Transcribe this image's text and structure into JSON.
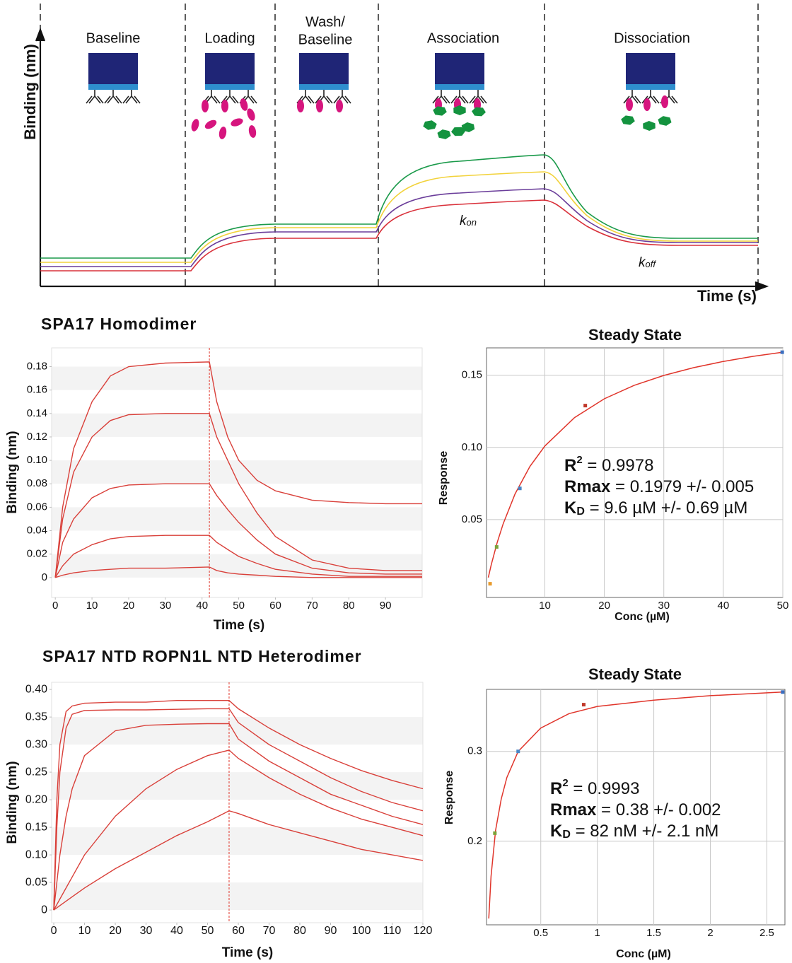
{
  "schematic": {
    "y_label": "Binding (nm)",
    "x_label": "Time (s)",
    "phases": [
      "Baseline",
      "Loading",
      "Wash/",
      "Baseline",
      "Association",
      "Dissociation"
    ],
    "k_on": {
      "main": "k",
      "sub": "on"
    },
    "k_off": {
      "main": "k",
      "sub": "off"
    }
  },
  "chart_data": [
    {
      "type": "line",
      "title": "SPA17 Homodimer",
      "y_label": "Binding (nm)",
      "x_label": "Time (s)",
      "x": [
        0,
        2,
        5,
        10,
        15,
        20,
        30,
        42,
        44,
        47,
        50,
        55,
        60,
        70,
        80,
        90,
        100
      ],
      "series": [
        {
          "color": "#d9403a",
          "values": [
            0,
            0.06,
            0.11,
            0.15,
            0.172,
            0.18,
            0.183,
            0.184,
            0.15,
            0.12,
            0.1,
            0.083,
            0.074,
            0.066,
            0.064,
            0.063,
            0.063
          ]
        },
        {
          "color": "#d9403a",
          "values": [
            0,
            0.05,
            0.09,
            0.12,
            0.134,
            0.139,
            0.14,
            0.14,
            0.12,
            0.1,
            0.08,
            0.055,
            0.035,
            0.015,
            0.008,
            0.006,
            0.006
          ]
        },
        {
          "color": "#d9403a",
          "values": [
            0,
            0.03,
            0.05,
            0.068,
            0.076,
            0.079,
            0.08,
            0.08,
            0.07,
            0.058,
            0.047,
            0.032,
            0.02,
            0.008,
            0.004,
            0.003,
            0.003
          ]
        },
        {
          "color": "#d9403a",
          "values": [
            0,
            0.01,
            0.02,
            0.028,
            0.033,
            0.035,
            0.036,
            0.036,
            0.03,
            0.024,
            0.018,
            0.012,
            0.007,
            0.003,
            0.001,
            0.001,
            0.001
          ]
        },
        {
          "color": "#d9403a",
          "values": [
            0,
            0.002,
            0.004,
            0.006,
            0.007,
            0.008,
            0.008,
            0.009,
            0.006,
            0.004,
            0.003,
            0.002,
            0.001,
            0,
            0,
            0,
            0
          ]
        }
      ],
      "dissociation_start": 42,
      "xlim": [
        -1,
        100
      ],
      "ylim": [
        -0.017,
        0.196
      ],
      "xticks": [
        0,
        10,
        20,
        30,
        40,
        50,
        60,
        70,
        80,
        90
      ],
      "yticks": [
        0,
        0.02,
        0.04,
        0.06,
        0.08,
        {
          "value": 0.1,
          "label": "0.10"
        },
        0.12,
        0.14,
        0.16,
        0.18
      ],
      "bands": true
    },
    {
      "type": "scatter",
      "title": "Steady State",
      "y_label": "Response",
      "x_label": "Conc (µM)",
      "points": {
        "x": [
          0.8,
          1.9,
          5.8,
          16.8,
          49.9
        ],
        "y": [
          0.0055,
          0.031,
          0.0716,
          0.129,
          0.166
        ],
        "colors": [
          "#e89a2c",
          "#7ca33a",
          "#4a86c5",
          "#c0392b",
          "#3b6fc0"
        ]
      },
      "fit": {
        "color": "#e0352b",
        "x": [
          0.5,
          1,
          2,
          3,
          5,
          7.5,
          10,
          15,
          20,
          25,
          30,
          35,
          40,
          45,
          50
        ],
        "values": [
          0.0098,
          0.0187,
          0.0341,
          0.0471,
          0.0678,
          0.0868,
          0.101,
          0.1207,
          0.1337,
          0.143,
          0.1499,
          0.1553,
          0.1596,
          0.1631,
          0.166
        ]
      },
      "annotation": [
        {
          "label": "R",
          "sup": "2",
          "text": " = 0.9978"
        },
        {
          "label": "Rmax",
          "text": " = 0.1979 +/- 0.005"
        },
        {
          "label": "K",
          "sub": "D",
          "text": " = 9.6 µM +/- 0.69 µM"
        }
      ],
      "xlim": [
        0.2,
        50
      ],
      "ylim": [
        -0.004,
        0.169
      ],
      "xticks": [
        10,
        20,
        30,
        40,
        50
      ],
      "yticks": [
        0.05,
        {
          "value": 0.1,
          "label": "0.10"
        },
        0.15
      ],
      "grid": true
    },
    {
      "type": "line",
      "title": "SPA17 NTD ROPN1L NTD Heterodimer",
      "y_label": "Binding (nm)",
      "x_label": "Time (s)",
      "x": [
        0,
        1,
        2,
        4,
        6,
        10,
        20,
        30,
        40,
        50,
        57,
        60,
        70,
        80,
        90,
        100,
        110,
        120
      ],
      "series": [
        {
          "color": "#d9403a",
          "values": [
            0,
            0.2,
            0.3,
            0.36,
            0.37,
            0.375,
            0.377,
            0.377,
            0.38,
            0.38,
            0.38,
            0.365,
            0.33,
            0.3,
            0.275,
            0.253,
            0.235,
            0.22
          ]
        },
        {
          "color": "#d9403a",
          "values": [
            0,
            0.15,
            0.25,
            0.33,
            0.355,
            0.362,
            0.363,
            0.363,
            0.364,
            0.365,
            0.365,
            0.34,
            0.3,
            0.27,
            0.24,
            0.215,
            0.195,
            0.18
          ]
        },
        {
          "color": "#d9403a",
          "values": [
            0,
            0.05,
            0.1,
            0.17,
            0.22,
            0.28,
            0.325,
            0.335,
            0.337,
            0.338,
            0.338,
            0.31,
            0.27,
            0.24,
            0.21,
            0.19,
            0.17,
            0.155
          ]
        },
        {
          "color": "#d9403a",
          "values": [
            0,
            0.01,
            0.02,
            0.04,
            0.06,
            0.1,
            0.17,
            0.22,
            0.255,
            0.28,
            0.29,
            0.275,
            0.24,
            0.21,
            0.185,
            0.165,
            0.15,
            0.135
          ]
        },
        {
          "color": "#d9403a",
          "values": [
            0,
            0.004,
            0.008,
            0.016,
            0.024,
            0.04,
            0.075,
            0.105,
            0.135,
            0.16,
            0.18,
            0.175,
            0.155,
            0.14,
            0.125,
            0.11,
            0.1,
            0.09
          ]
        }
      ],
      "dissociation_start": 57,
      "xlim": [
        -0.7,
        120
      ],
      "ylim": [
        -0.023,
        0.413
      ],
      "xticks": [
        0,
        10,
        20,
        30,
        40,
        50,
        60,
        70,
        80,
        90,
        100,
        110,
        120
      ],
      "yticks": [
        0,
        0.05,
        {
          "value": 0.1,
          "label": "0.10"
        },
        0.15,
        {
          "value": 0.2,
          "label": "0.20"
        },
        0.25,
        {
          "value": 0.3,
          "label": "0.30"
        },
        0.35,
        {
          "value": 0.4,
          "label": "0.40"
        }
      ],
      "bands": true
    },
    {
      "type": "scatter",
      "title": "Steady State",
      "y_label": "Response",
      "x_label": "Conc (µM)",
      "points": {
        "x": [
          0.094,
          0.3,
          0.88,
          2.64
        ],
        "y": [
          0.209,
          0.3,
          0.352,
          0.366
        ],
        "colors": [
          "#7ca33a",
          "#4a86c5",
          "#c0392b",
          "#3b6fc0"
        ]
      },
      "fit": {
        "color": "#e0352b",
        "x": [
          0.04,
          0.06,
          0.1,
          0.15,
          0.2,
          0.3,
          0.5,
          0.75,
          1,
          1.5,
          2,
          2.64
        ],
        "values": [
          0.114,
          0.161,
          0.212,
          0.247,
          0.271,
          0.3,
          0.326,
          0.342,
          0.35,
          0.357,
          0.362,
          0.366
        ]
      },
      "annotation": [
        {
          "label": "R",
          "sup": "2",
          "text": " = 0.9993"
        },
        {
          "label": "Rmax",
          "text": " = 0.38 +/- 0.002"
        },
        {
          "label": "K",
          "sub": "D",
          "text": " = 82 nM +/- 2.1 nM"
        }
      ],
      "xlim": [
        0.02,
        2.66
      ],
      "ylim": [
        0.107,
        0.369
      ],
      "xticks": [
        0.5,
        1,
        1.5,
        2,
        2.5
      ],
      "yticks": [
        0.2,
        0.3
      ],
      "grid": true
    }
  ]
}
